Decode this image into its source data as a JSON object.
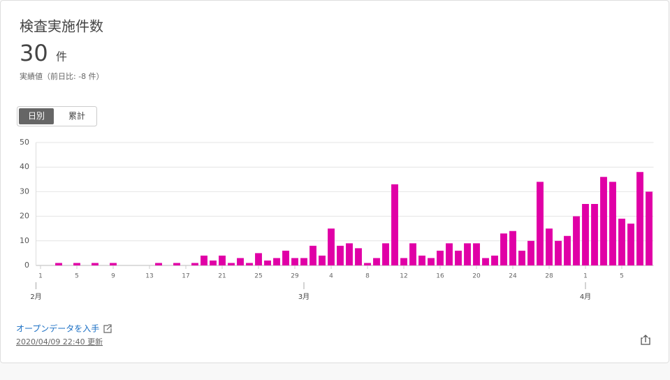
{
  "header": {
    "title": "検査実施件数",
    "value": "30",
    "unit": "件",
    "subtitle": "実績値（前日比: -8 件）"
  },
  "tabs": [
    "日別",
    "累計"
  ],
  "chart_data": {
    "type": "bar",
    "color": "#e000a6",
    "categories": [
      "1",
      null,
      null,
      null,
      "5",
      null,
      null,
      null,
      "9",
      null,
      null,
      null,
      "13",
      null,
      null,
      null,
      "17",
      null,
      null,
      null,
      "21",
      null,
      null,
      null,
      "25",
      null,
      null,
      null,
      "29",
      null,
      null,
      null,
      "4",
      null,
      null,
      null,
      "8",
      null,
      null,
      null,
      "12",
      null,
      null,
      null,
      "16",
      null,
      null,
      null,
      "20",
      null,
      null,
      null,
      "24",
      null,
      null,
      null,
      "28",
      null,
      null,
      null,
      "1",
      null,
      null,
      null,
      "5",
      null,
      null,
      null
    ],
    "values": [
      0,
      0,
      1,
      0,
      1,
      0,
      1,
      0,
      1,
      0,
      0,
      0,
      0,
      1,
      0,
      1,
      0,
      1,
      4,
      2,
      4,
      1,
      3,
      1,
      5,
      2,
      3,
      6,
      3,
      3,
      8,
      4,
      15,
      8,
      9,
      7,
      1,
      3,
      9,
      33,
      3,
      9,
      4,
      3,
      6,
      9,
      6,
      9,
      9,
      3,
      4,
      13,
      14,
      6,
      10,
      34,
      15,
      10,
      12,
      20,
      25,
      25,
      36,
      34,
      19,
      17,
      38,
      30
    ],
    "months": [
      {
        "label": "2月",
        "index": 0
      },
      {
        "label": "3月",
        "index": 29
      },
      {
        "label": "4月",
        "index": 60
      }
    ],
    "ylim": [
      0,
      50
    ],
    "yticks": [
      0,
      10,
      20,
      30,
      40,
      50
    ],
    "grid": true
  },
  "footer": {
    "link": "オープンデータを入手",
    "updated": "2020/04/09 22:40 更新"
  }
}
